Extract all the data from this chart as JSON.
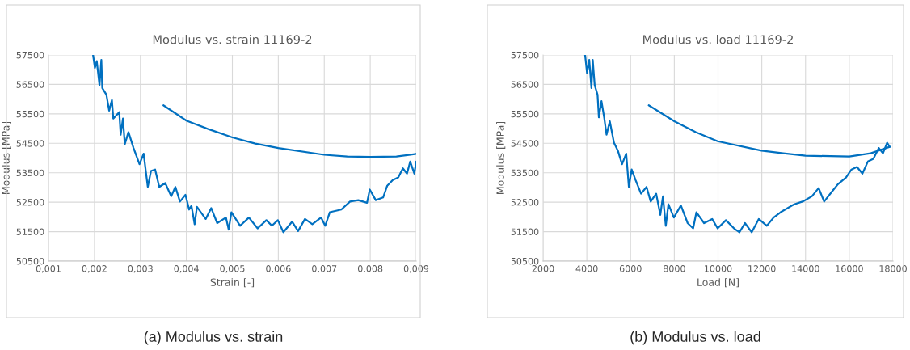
{
  "chart_data": [
    {
      "type": "line",
      "title": "Modulus vs. strain 11169-2",
      "xlabel": "Strain [-]",
      "ylabel": "Modulus [MPa]",
      "annotations": [
        "(a) Modulus vs. strain"
      ],
      "xlim": [
        0.001,
        0.009
      ],
      "xticks": [
        {
          "value": 0.001,
          "label": "0,001"
        },
        {
          "value": 0.002,
          "label": "0,002"
        },
        {
          "value": 0.003,
          "label": "0,003"
        },
        {
          "value": 0.004,
          "label": "0,004"
        },
        {
          "value": 0.005,
          "label": "0,005"
        },
        {
          "value": 0.006,
          "label": "0,006"
        },
        {
          "value": 0.007,
          "label": "0,007"
        },
        {
          "value": 0.008,
          "label": "0,008"
        },
        {
          "value": 0.009,
          "label": "0,009"
        }
      ],
      "ylim": [
        50500,
        57500
      ],
      "yticks": [
        50500,
        51500,
        52500,
        53500,
        54500,
        55500,
        56500,
        57500
      ],
      "grid": true,
      "series": [
        {
          "color": "#0070c0",
          "x": [
            0.00197,
            0.00201,
            0.00205,
            0.00211,
            0.00215,
            0.00217,
            0.00226,
            0.00232,
            0.00238,
            0.00241,
            0.00254,
            0.00257,
            0.00262,
            0.00266,
            0.00274,
            0.00285,
            0.00298,
            0.00307,
            0.00316,
            0.00323,
            0.00332,
            0.00341,
            0.00354,
            0.00367,
            0.00376,
            0.00386,
            0.00398,
            0.00406,
            0.00411,
            0.00418,
            0.00423,
            0.00442,
            0.00454,
            0.00467,
            0.00486,
            0.00492,
            0.00498,
            0.00517,
            0.00536,
            0.00555,
            0.00574,
            0.00586,
            0.00599,
            0.00611,
            0.0063,
            0.00643,
            0.00658,
            0.00674,
            0.00693,
            0.00702,
            0.00712,
            0.00737,
            0.00756,
            0.00774,
            0.00793,
            0.00799,
            0.00812,
            0.00828,
            0.00837,
            0.00849,
            0.00861,
            0.00871,
            0.0088,
            0.00887,
            0.00896,
            0.009
          ],
          "values": [
            57500,
            57060,
            57290,
            56470,
            57330,
            56380,
            56150,
            55610,
            55970,
            55340,
            55560,
            54790,
            55340,
            54470,
            54880,
            54340,
            53790,
            54150,
            53020,
            53560,
            53610,
            53020,
            53150,
            52700,
            53020,
            52520,
            52750,
            52250,
            52380,
            51750,
            52340,
            51930,
            52300,
            51790,
            51980,
            51570,
            52160,
            51700,
            51980,
            51610,
            51890,
            51700,
            51890,
            51480,
            51840,
            51520,
            51930,
            51750,
            51980,
            51700,
            52160,
            52250,
            52520,
            52570,
            52480,
            52930,
            52570,
            52660,
            53060,
            53250,
            53340,
            53650,
            53470,
            53880,
            53470,
            53880
          ]
        },
        {
          "color": "#0070c0",
          "x": [
            0.0035,
            0.004,
            0.0045,
            0.005,
            0.0055,
            0.006,
            0.007,
            0.0075,
            0.008,
            0.00857,
            0.009
          ],
          "values": [
            55790,
            55270,
            54970,
            54700,
            54490,
            54340,
            54110,
            54050,
            54040,
            54050,
            54140
          ]
        }
      ]
    },
    {
      "type": "line",
      "title": "Modulus vs. load 11169-2",
      "xlabel": "Load [N]",
      "ylabel": "Modulus [MPa]",
      "annotations": [
        "(b) Modulus vs. load"
      ],
      "xlim": [
        2000,
        18000
      ],
      "xticks": [
        2000,
        4000,
        6000,
        8000,
        10000,
        12000,
        14000,
        16000,
        18000
      ],
      "ylim": [
        50500,
        57500
      ],
      "yticks": [
        50500,
        51500,
        52500,
        53500,
        54500,
        55500,
        56500,
        57500
      ],
      "grid": true,
      "series": [
        {
          "color": "#0070c0",
          "x": [
            3920,
            4010,
            4110,
            4210,
            4270,
            4360,
            4490,
            4550,
            4670,
            4800,
            4900,
            5050,
            5240,
            5420,
            5610,
            5800,
            5920,
            6050,
            6230,
            6480,
            6730,
            6920,
            7170,
            7360,
            7480,
            7610,
            7730,
            7980,
            8300,
            8610,
            8860,
            9010,
            9360,
            9730,
            9980,
            10360,
            10730,
            10980,
            11230,
            11540,
            11860,
            12230,
            12540,
            12860,
            13480,
            13860,
            14290,
            14600,
            14850,
            15230,
            15480,
            15850,
            16100,
            16350,
            16600,
            16850,
            17100,
            17350,
            17540,
            17730,
            17850
          ],
          "values": [
            57500,
            56880,
            57330,
            56380,
            57330,
            56470,
            56150,
            55380,
            55930,
            55340,
            54790,
            55250,
            54520,
            54250,
            53790,
            54150,
            53020,
            53610,
            53250,
            52790,
            53020,
            52520,
            52790,
            52070,
            52700,
            51700,
            52430,
            51980,
            52390,
            51790,
            51610,
            52160,
            51790,
            51930,
            51610,
            51890,
            51610,
            51480,
            51790,
            51480,
            51930,
            51700,
            51980,
            52160,
            52430,
            52520,
            52700,
            52980,
            52520,
            52880,
            53110,
            53340,
            53610,
            53700,
            53470,
            53880,
            53970,
            54340,
            54160,
            54520,
            54380
          ]
        },
        {
          "color": "#0070c0",
          "x": [
            6830,
            8000,
            8980,
            9980,
            11990,
            12980,
            14000,
            16000,
            16980,
            17850
          ],
          "values": [
            55790,
            55250,
            54880,
            54570,
            54250,
            54160,
            54080,
            54050,
            54160,
            54380
          ]
        }
      ]
    }
  ]
}
